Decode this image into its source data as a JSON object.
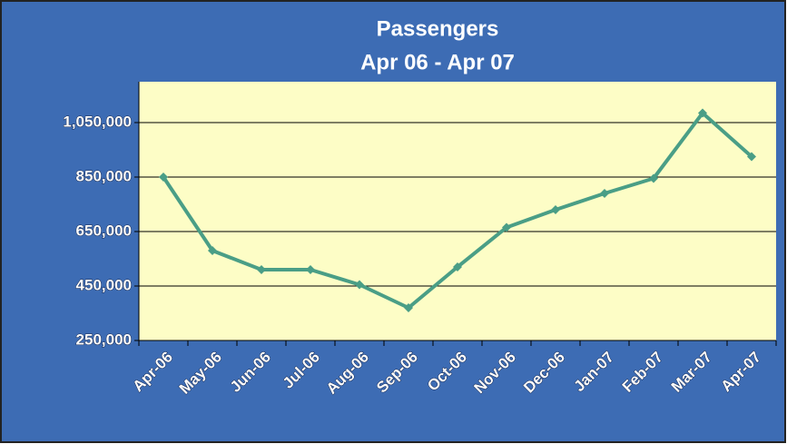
{
  "chart_data": {
    "type": "line",
    "title": "Passengers",
    "subtitle": "Apr 06 - Apr 07",
    "categories": [
      "Apr-06",
      "May-06",
      "Jun-06",
      "Jul-06",
      "Aug-06",
      "Sep-06",
      "Oct-06",
      "Nov-06",
      "Dec-06",
      "Jan-07",
      "Feb-07",
      "Mar-07",
      "Apr-07"
    ],
    "series": [
      {
        "name": "Passengers",
        "color": "#4a9e86",
        "values": [
          850000,
          580000,
          510000,
          510000,
          455000,
          370000,
          520000,
          665000,
          730000,
          790000,
          845000,
          1085000,
          925000
        ]
      }
    ],
    "ylim": [
      250000,
      1200000
    ],
    "yticks": [
      {
        "value": 250000,
        "label": "250,000"
      },
      {
        "value": 450000,
        "label": "450,000"
      },
      {
        "value": 650000,
        "label": "650,000"
      },
      {
        "value": 850000,
        "label": "850,000"
      },
      {
        "value": 1050000,
        "label": "1,050,000"
      }
    ],
    "grid": true
  }
}
